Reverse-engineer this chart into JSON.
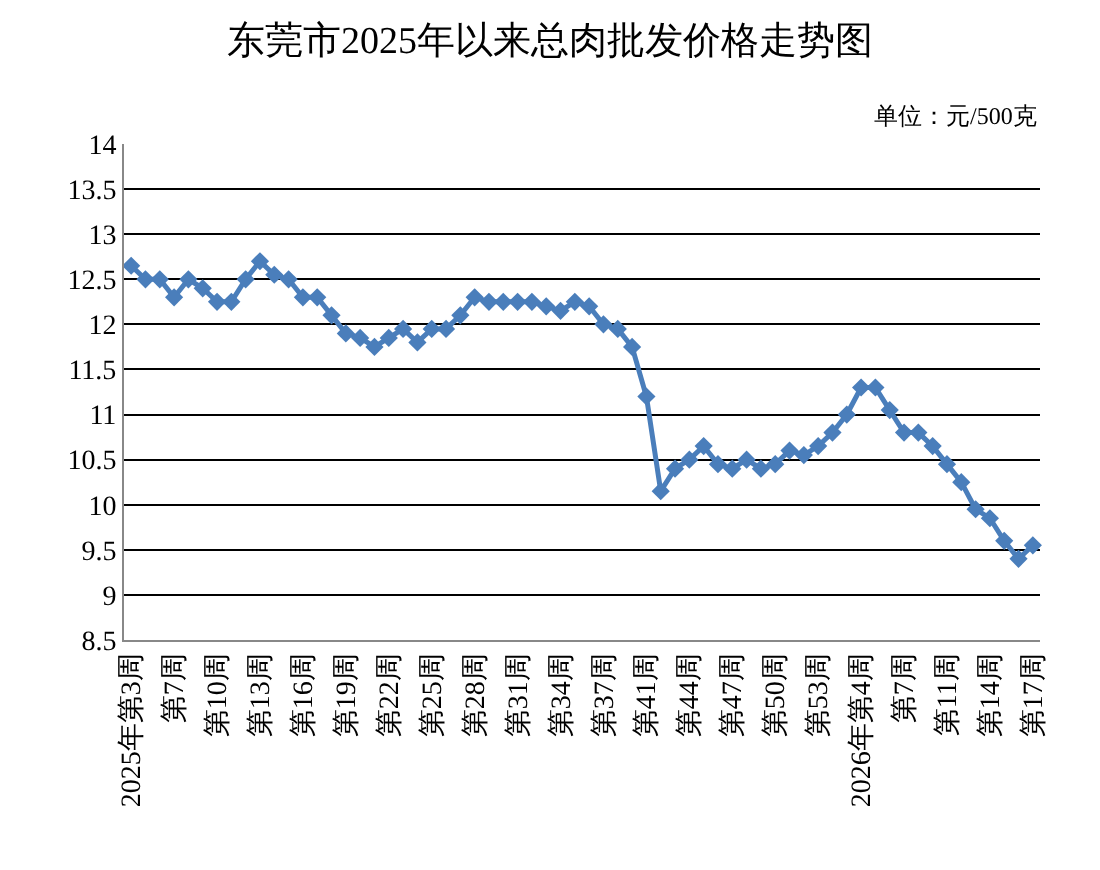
{
  "chart_data": {
    "type": "line",
    "title": "东莞市2025年以来总肉批发价格走势图",
    "annotations": [
      "单位：元/500克"
    ],
    "categories": [
      "2025年第3周",
      null,
      null,
      "第7周",
      null,
      null,
      "第10周",
      null,
      null,
      "第13周",
      null,
      null,
      "第16周",
      null,
      null,
      "第19周",
      null,
      null,
      "第22周",
      null,
      null,
      "第25周",
      null,
      null,
      "第28周",
      null,
      null,
      "第31周",
      null,
      null,
      "第34周",
      null,
      null,
      "第37周",
      null,
      null,
      "第41周",
      null,
      null,
      "第44周",
      null,
      null,
      "第47周",
      null,
      null,
      "第50周",
      null,
      null,
      "第53周",
      null,
      null,
      "2026年第4周",
      null,
      null,
      "第7周",
      null,
      null,
      "第11周",
      null,
      null,
      "第14周",
      null,
      null,
      "第17周"
    ],
    "series": [
      {
        "color": "#4a7ebb",
        "values": [
          12.65,
          12.5,
          12.5,
          12.3,
          12.5,
          12.4,
          12.25,
          12.25,
          12.5,
          12.7,
          12.55,
          12.5,
          12.3,
          12.3,
          12.1,
          11.9,
          11.85,
          11.75,
          11.85,
          11.95,
          11.8,
          11.95,
          11.95,
          12.1,
          12.3,
          12.25,
          12.25,
          12.25,
          12.25,
          12.2,
          12.15,
          12.25,
          12.2,
          12.0,
          11.95,
          11.75,
          11.2,
          10.15,
          10.4,
          10.5,
          10.65,
          10.45,
          10.4,
          10.5,
          10.4,
          10.45,
          10.6,
          10.55,
          10.65,
          10.8,
          11.0,
          11.3,
          11.3,
          11.05,
          10.8,
          10.8,
          10.65,
          10.45,
          10.25,
          9.95,
          9.85,
          9.6,
          9.4,
          9.55
        ]
      }
    ],
    "ylim": [
      8.5,
      14
    ],
    "yticks": [
      8.5,
      9,
      9.5,
      10,
      10.5,
      11,
      11.5,
      12,
      12.5,
      13,
      13.5,
      14
    ],
    "grid": "y",
    "marker": "diamond",
    "line_style": "solid"
  }
}
